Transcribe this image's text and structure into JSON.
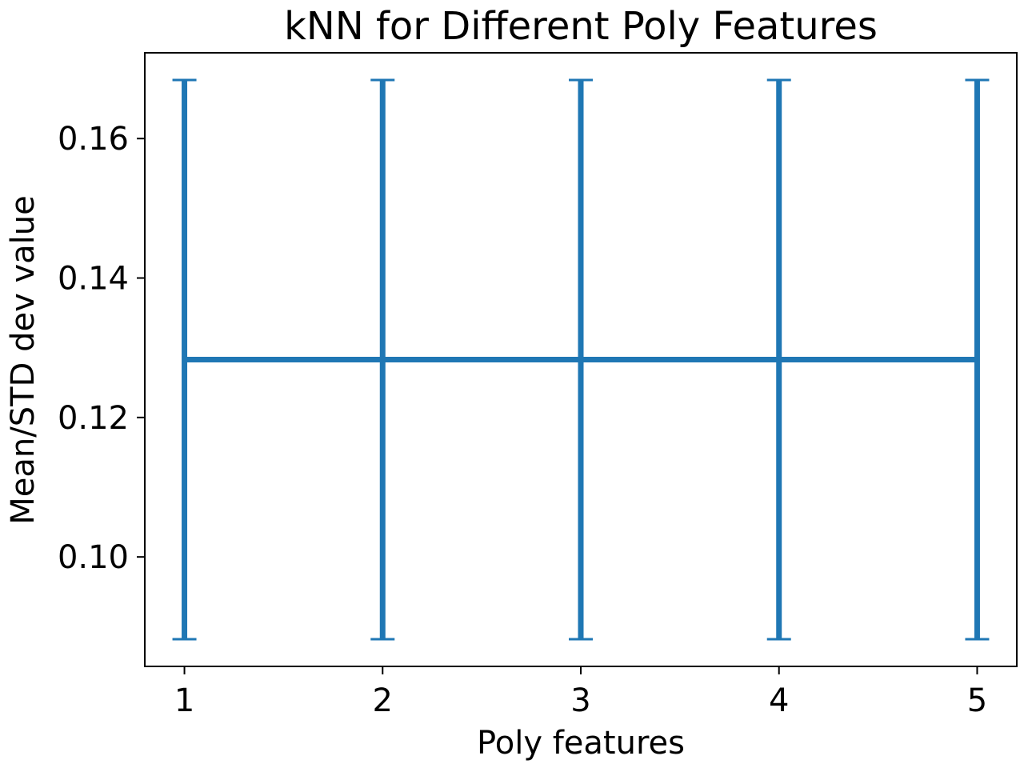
{
  "chart_data": {
    "type": "line",
    "title": "kNN for Different Poly Features",
    "xlabel": "Poly features",
    "ylabel": "Mean/STD dev value",
    "x": [
      1,
      2,
      3,
      4,
      5
    ],
    "series": [
      {
        "values": [
          0.1283,
          0.1283,
          0.1283,
          0.1283,
          0.1283
        ],
        "error": [
          0.0401,
          0.0401,
          0.0401,
          0.0401,
          0.0401
        ]
      }
    ],
    "xticks": [
      1,
      2,
      3,
      4,
      5
    ],
    "xtick_labels": [
      "1",
      "2",
      "3",
      "4",
      "5"
    ],
    "yticks": [
      0.1,
      0.12,
      0.14,
      0.16
    ],
    "ytick_labels": [
      "0.10",
      "0.12",
      "0.14",
      "0.16"
    ],
    "xlim": [
      0.8,
      5.2
    ],
    "ylim": [
      0.0843,
      0.1723
    ],
    "grid": false,
    "color": "#1f77b4"
  }
}
